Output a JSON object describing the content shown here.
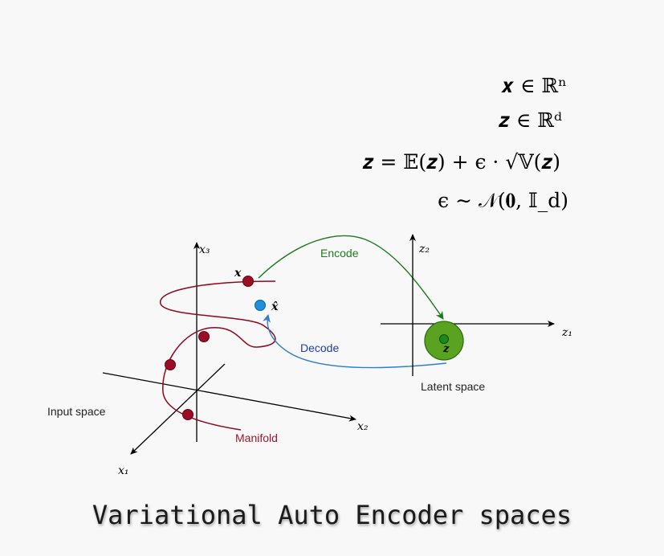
{
  "equations": {
    "eq1": "𝒙 ∈ ℝⁿ",
    "eq2": "𝒛 ∈ ℝᵈ",
    "eq3": "𝒛 = 𝔼(𝒛) + ϵ · √𝕍(𝒛)",
    "eq4": "ϵ ∼ 𝒩(𝟎, 𝕀_d)"
  },
  "input_axes": {
    "x1": "x₁",
    "x2": "x₂",
    "x3": "x₃"
  },
  "latent_axes": {
    "z1": "z₁",
    "z2": "z₂"
  },
  "labels": {
    "input_space": "Input space",
    "latent_space": "Latent space",
    "manifold": "Manifold",
    "encode": "Encode",
    "decode": "Decode",
    "x_point": "𝒙",
    "x_hat": "𝒙̂",
    "z_point": "𝒛"
  },
  "colors": {
    "manifold": "#8b0a1f",
    "encode": "#1e7a1e",
    "decode": "#2f7ecb",
    "latent_fill": "#5aa320",
    "latent_point": "#1a8a1a",
    "x_hat_fill": "#1e90e0"
  },
  "title": "Variational Auto Encoder spaces"
}
